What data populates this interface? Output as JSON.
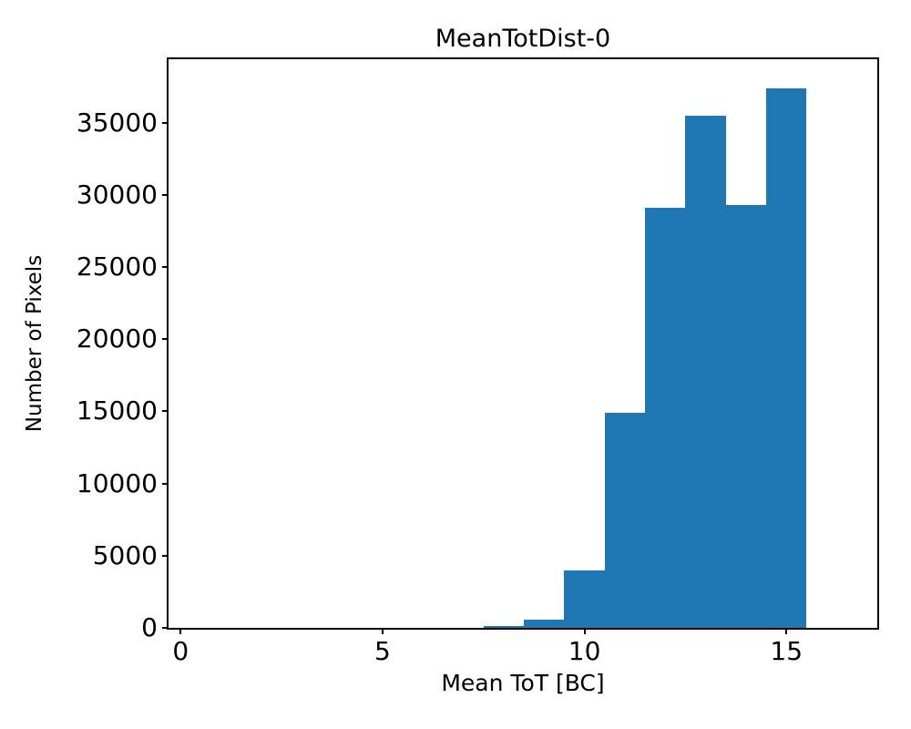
{
  "chart_data": {
    "type": "bar",
    "subtype": "histogram",
    "title": "MeanTotDist-0",
    "xlabel": "Mean ToT [BC]",
    "ylabel": "Number of Pixels",
    "bar_color": "#1f77b4",
    "bin_width": 1.0,
    "bin_start_edges": [
      7.5,
      8.5,
      9.5,
      10.5,
      11.5,
      12.5,
      13.5,
      14.5
    ],
    "counts": [
      130,
      550,
      4000,
      14900,
      29100,
      35500,
      29300,
      37400
    ],
    "xticks": [
      0,
      5,
      10,
      15
    ],
    "yticks": [
      0,
      5000,
      10000,
      15000,
      20000,
      25000,
      30000,
      35000
    ],
    "xlim": [
      -0.3,
      17.25
    ],
    "ylim": [
      0,
      39400
    ],
    "grid": false,
    "legend": null
  }
}
